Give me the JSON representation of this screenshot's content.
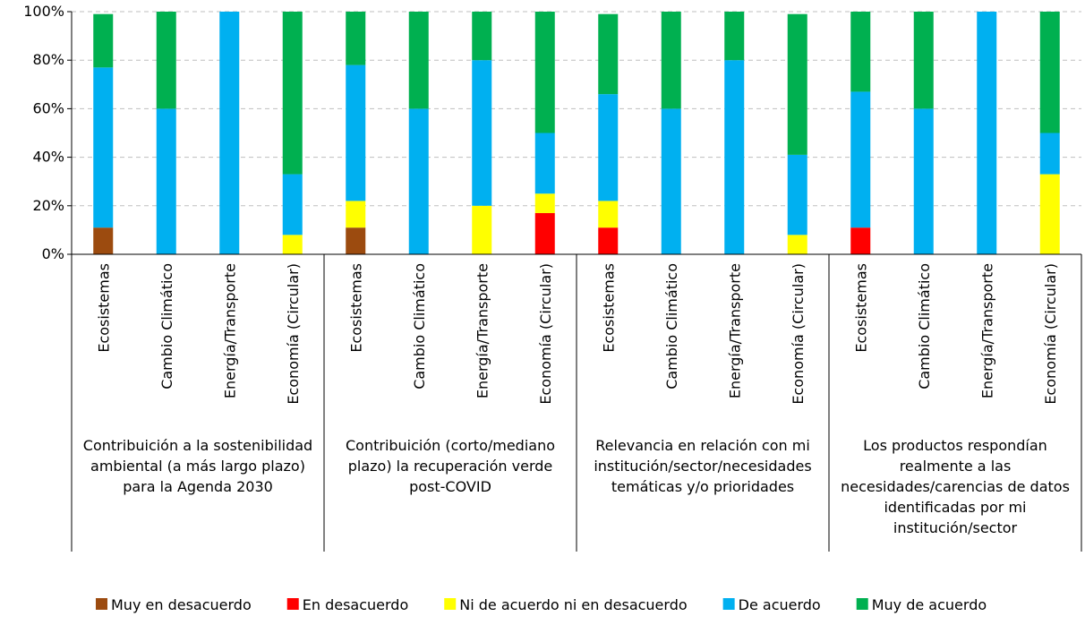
{
  "chart_data": {
    "type": "bar",
    "stacked": true,
    "ylim": [
      0,
      100
    ],
    "y_ticks": [
      "0%",
      "20%",
      "40%",
      "60%",
      "80%",
      "100%"
    ],
    "grid": true,
    "legend_position": "bottom",
    "groups": [
      {
        "label": "Contribuición a la sostenibilidad ambiental (a más largo plazo) para la Agenda 2030",
        "lines": [
          "Contribuición a la sostenibilidad",
          "ambiental (a más largo plazo)",
          "para la Agenda 2030"
        ]
      },
      {
        "label": "Contribuición (corto/mediano plazo) la recuperación verde post-COVID",
        "lines": [
          "Contribuición (corto/mediano",
          "plazo) la recuperación verde",
          "post-COVID"
        ]
      },
      {
        "label": "Relevancia en relación con mi institución/sector/necesidades temáticas y/o prioridades",
        "lines": [
          "Relevancia en relación con mi",
          "institución/sector/necesidades",
          "temáticas y/o prioridades"
        ]
      },
      {
        "label": "Los productos respondían realmente a las necesidades/carencias de datos identificadas por mi institución/sector",
        "lines": [
          "Los productos respondían",
          "realmente a las",
          "necesidades/carencias de datos",
          "identificadas por mi",
          "institución/sector"
        ]
      }
    ],
    "categories": [
      "Ecosistemas",
      "Cambio Climático",
      "Energía/Transporte",
      "Economía (Circular)",
      "Ecosistemas",
      "Cambio Climático",
      "Energía/Transporte",
      "Economía (Circular)",
      "Ecosistemas",
      "Cambio Climático",
      "Energía/Transporte",
      "Economía (Circular)",
      "Ecosistemas",
      "Cambio Climático",
      "Energía/Transporte",
      "Economía (Circular)"
    ],
    "series": [
      {
        "name": "Muy en desacuerdo",
        "color": "#9C4B0F",
        "values": [
          11,
          0,
          0,
          0,
          11,
          0,
          0,
          0,
          0,
          0,
          0,
          0,
          0,
          0,
          0,
          0
        ]
      },
      {
        "name": "En desacuerdo",
        "color": "#FF0000",
        "values": [
          0,
          0,
          0,
          0,
          0,
          0,
          0,
          17,
          11,
          0,
          0,
          0,
          11,
          0,
          0,
          0
        ]
      },
      {
        "name": "Ni de acuerdo ni en desacuerdo",
        "color": "#FFFF00",
        "values": [
          0,
          0,
          0,
          8,
          11,
          0,
          20,
          8,
          11,
          0,
          0,
          8,
          0,
          0,
          0,
          33
        ]
      },
      {
        "name": "De acuerdo",
        "color": "#00B0F0",
        "values": [
          66,
          60,
          100,
          25,
          56,
          60,
          60,
          25,
          44,
          60,
          80,
          33,
          56,
          60,
          100,
          17
        ]
      },
      {
        "name": "Muy de acuerdo",
        "color": "#00B050",
        "values": [
          22,
          40,
          0,
          67,
          22,
          40,
          20,
          50,
          33,
          40,
          20,
          58,
          33,
          40,
          0,
          50
        ]
      }
    ]
  }
}
